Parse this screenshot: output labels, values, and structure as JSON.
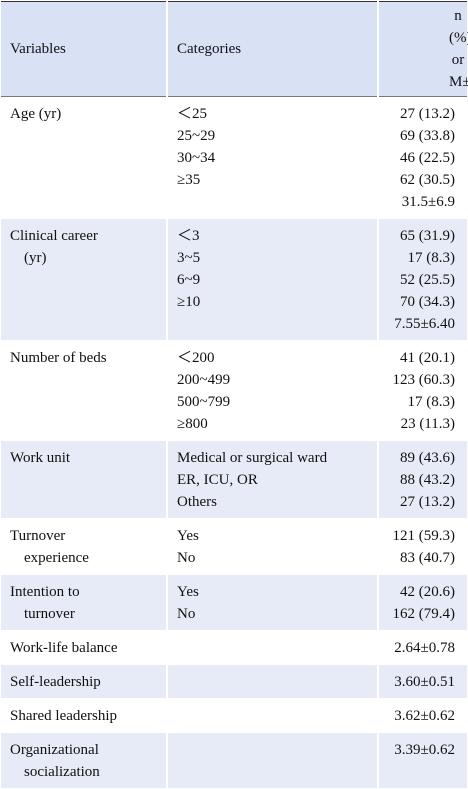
{
  "header": {
    "variables": "Variables",
    "categories": "Categories",
    "value": [
      "n (%) or",
      "M±SD"
    ]
  },
  "rows": [
    {
      "variable": [
        "Age (yr)"
      ],
      "categories": [
        "＜25",
        "25~29",
        "30~34",
        "≥35"
      ],
      "values": [
        "27 (13.2)",
        "69 (33.8)",
        "46 (22.5)",
        "62 (30.5)",
        "31.5±6.9"
      ]
    },
    {
      "variable": [
        "Clinical career",
        "(yr)"
      ],
      "categories": [
        "＜3",
        "3~5",
        "6~9",
        "≥10"
      ],
      "values": [
        "65 (31.9)",
        "17 (8.3)",
        "52 (25.5)",
        "70 (34.3)",
        "7.55±6.40"
      ]
    },
    {
      "variable": [
        "Number of beds"
      ],
      "categories": [
        "＜200",
        "200~499",
        "500~799",
        "≥800"
      ],
      "values": [
        "41 (20.1)",
        "123 (60.3)",
        "17 (8.3)",
        "23 (11.3)"
      ]
    },
    {
      "variable": [
        "Work unit"
      ],
      "categories": [
        "Medical or surgical ward",
        "ER, ICU, OR",
        "Others"
      ],
      "values": [
        "89 (43.6)",
        "88 (43.2)",
        "27 (13.2)"
      ]
    },
    {
      "variable": [
        "Turnover",
        "experience"
      ],
      "categories": [
        "Yes",
        "No"
      ],
      "values": [
        "121 (59.3)",
        "83 (40.7)"
      ]
    },
    {
      "variable": [
        "Intention to",
        "turnover"
      ],
      "categories": [
        "Yes",
        "No"
      ],
      "values": [
        "42 (20.6)",
        "162 (79.4)"
      ]
    },
    {
      "variable": [
        "Work-life balance"
      ],
      "categories": [],
      "values": [
        "2.64±0.78"
      ]
    },
    {
      "variable": [
        "Self-leadership"
      ],
      "categories": [],
      "values": [
        "3.60±0.51"
      ]
    },
    {
      "variable": [
        "Shared leadership"
      ],
      "categories": [],
      "values": [
        "3.62±0.62"
      ]
    },
    {
      "variable": [
        "Organizational",
        "socialization"
      ],
      "categories": [],
      "values": [
        "3.39±0.62"
      ]
    }
  ]
}
